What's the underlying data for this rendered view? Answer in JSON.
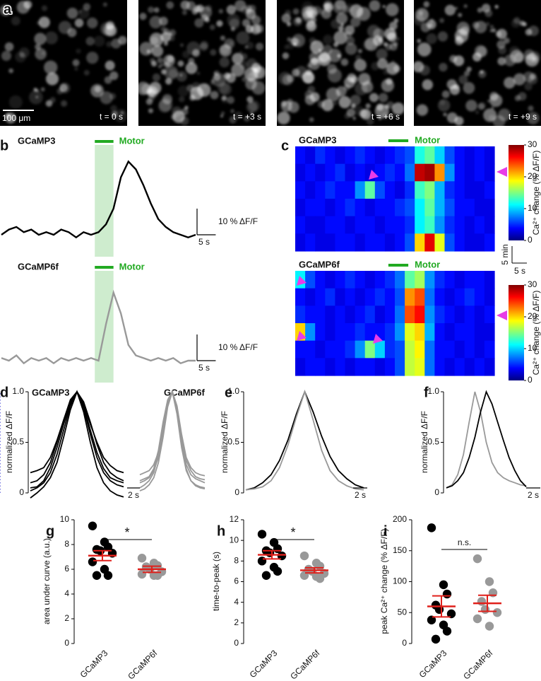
{
  "images": {
    "label": "a",
    "frames": [
      "t = 0 s",
      "t = +3 s",
      "t = +6 s",
      "t = +9 s"
    ],
    "scalebar": "100 μm"
  },
  "chart_data": [
    {
      "type": "trace",
      "panel": "b",
      "stimulus": "Motor",
      "stimulus_color": "#22aa22",
      "x": [
        0,
        2,
        4,
        6,
        8,
        10,
        12,
        14,
        16,
        18,
        20,
        22,
        24,
        26,
        28,
        30,
        32,
        34,
        36,
        38,
        40,
        42,
        44,
        46,
        48,
        50,
        52
      ],
      "window": [
        25,
        30
      ],
      "scalebar_y": {
        "value": 10,
        "label": "10 % ΔF/F"
      },
      "scalebar_x": {
        "value": 5,
        "label": "5 s"
      },
      "traces": [
        {
          "name": "GCaMP3",
          "color": "#000000",
          "values": [
            0,
            2,
            3,
            1,
            2,
            0,
            1,
            0,
            2,
            1,
            -1,
            1,
            0,
            1,
            4,
            10,
            22,
            28,
            25,
            19,
            12,
            6,
            3,
            1,
            0,
            -1,
            0
          ]
        },
        {
          "name": "GCaMP6f",
          "color": "#999999",
          "values": [
            1,
            0,
            2,
            -1,
            1,
            0,
            1,
            -1,
            1,
            0,
            1,
            0,
            1,
            0,
            14,
            26,
            18,
            6,
            2,
            1,
            0,
            1,
            0,
            1,
            -1,
            0,
            0
          ]
        }
      ]
    },
    {
      "type": "heatmap",
      "panel": "c",
      "stimulus": "Motor",
      "stimulus_color": "#22aa22",
      "window": [
        9,
        11
      ],
      "zlim": [
        0,
        30
      ],
      "zticks": [
        0,
        10,
        20,
        30
      ],
      "colorbar_label": "Ca²⁺ change (% ΔF/F)",
      "scalebar_y": "5 min",
      "scalebar_x": "5 s",
      "maps": [
        {
          "name": "GCaMP3",
          "rows": [
            [
              4,
              3,
              5,
              4,
              3,
              4,
              5,
              4,
              3,
              4,
              5,
              6,
              12,
              14,
              10,
              6,
              4,
              3,
              4,
              3
            ],
            [
              3,
              4,
              3,
              4,
              5,
              3,
              4,
              3,
              4,
              5,
              4,
              7,
              28,
              29,
              22,
              8,
              4,
              3,
              4,
              3
            ],
            [
              4,
              3,
              4,
              5,
              4,
              4,
              8,
              14,
              6,
              4,
              3,
              5,
              13,
              15,
              9,
              5,
              4,
              3,
              3,
              4
            ],
            [
              3,
              4,
              4,
              3,
              4,
              5,
              4,
              3,
              4,
              4,
              5,
              6,
              11,
              14,
              9,
              6,
              4,
              4,
              3,
              3
            ],
            [
              4,
              3,
              3,
              4,
              4,
              3,
              4,
              4,
              3,
              4,
              4,
              5,
              11,
              13,
              8,
              5,
              4,
              3,
              4,
              3
            ],
            [
              3,
              4,
              3,
              3,
              4,
              4,
              3,
              4,
              4,
              3,
              4,
              6,
              20,
              27,
              18,
              6,
              4,
              3,
              3,
              4
            ]
          ]
        },
        {
          "name": "GCaMP6f",
          "rows": [
            [
              11,
              6,
              4,
              3,
              4,
              5,
              4,
              3,
              4,
              5,
              7,
              14,
              16,
              8,
              5,
              4,
              3,
              4,
              4,
              3
            ],
            [
              4,
              3,
              4,
              5,
              3,
              4,
              3,
              4,
              5,
              4,
              6,
              22,
              24,
              7,
              4,
              3,
              4,
              5,
              4,
              3
            ],
            [
              5,
              4,
              4,
              3,
              4,
              3,
              4,
              5,
              3,
              4,
              7,
              24,
              26,
              8,
              5,
              4,
              3,
              4,
              3,
              4
            ],
            [
              20,
              8,
              4,
              3,
              4,
              4,
              5,
              4,
              4,
              5,
              8,
              18,
              20,
              9,
              4,
              3,
              4,
              4,
              3,
              3
            ],
            [
              4,
              4,
              3,
              4,
              4,
              5,
              8,
              15,
              10,
              5,
              6,
              17,
              19,
              7,
              4,
              4,
              3,
              4,
              3,
              4
            ],
            [
              3,
              4,
              4,
              3,
              4,
              3,
              4,
              4,
              3,
              4,
              6,
              17,
              18,
              7,
              4,
              3,
              4,
              3,
              4,
              3
            ]
          ]
        }
      ]
    },
    {
      "type": "line",
      "panel": "d",
      "ylabel": "normalized ΔF/F",
      "ylim": [
        0,
        1
      ],
      "yticks": [
        0,
        0.5,
        {
          "value": 1,
          "label": "1.0"
        }
      ],
      "scalebar_x": "2 s",
      "groups": [
        {
          "name": "GCaMP3",
          "color": "#000000",
          "series": [
            [
              0.02,
              0.05,
              0.1,
              0.2,
              0.38,
              0.62,
              0.86,
              1,
              0.84,
              0.58,
              0.35,
              0.2,
              0.12,
              0.08,
              0.06
            ],
            [
              0.1,
              0.12,
              0.18,
              0.3,
              0.5,
              0.72,
              0.9,
              1,
              0.9,
              0.7,
              0.48,
              0.3,
              0.2,
              0.15,
              0.12
            ],
            [
              -0.05,
              0,
              0.06,
              0.15,
              0.3,
              0.55,
              0.82,
              1,
              0.8,
              0.5,
              0.25,
              0.1,
              0.02,
              -0.02,
              -0.04
            ],
            [
              0.2,
              0.22,
              0.25,
              0.35,
              0.52,
              0.72,
              0.92,
              1,
              0.88,
              0.68,
              0.5,
              0.35,
              0.27,
              0.22,
              0.2
            ],
            [
              0.05,
              0.06,
              0.12,
              0.25,
              0.45,
              0.68,
              0.88,
              1,
              0.86,
              0.62,
              0.4,
              0.24,
              0.15,
              0.12,
              0.1
            ]
          ]
        },
        {
          "name": "GCaMP6f",
          "color": "#999999",
          "series": [
            [
              0.1,
              0.12,
              0.15,
              0.22,
              0.35,
              0.6,
              0.88,
              1,
              0.82,
              0.5,
              0.28,
              0.18,
              0.14,
              0.12,
              0.1
            ],
            [
              0.02,
              0.04,
              0.08,
              0.15,
              0.3,
              0.55,
              0.85,
              1,
              0.8,
              0.48,
              0.24,
              0.12,
              0.07,
              0.05,
              0.04
            ],
            [
              0.18,
              0.2,
              0.22,
              0.28,
              0.4,
              0.62,
              0.9,
              1,
              0.86,
              0.58,
              0.35,
              0.25,
              0.2,
              0.18,
              0.17
            ],
            [
              0.05,
              0.08,
              0.12,
              0.2,
              0.38,
              0.65,
              0.9,
              1,
              0.78,
              0.45,
              0.22,
              0.12,
              0.08,
              0.06,
              0.05
            ],
            [
              0.12,
              0.14,
              0.16,
              0.24,
              0.42,
              0.7,
              0.92,
              1,
              0.85,
              0.55,
              0.32,
              0.22,
              0.16,
              0.14,
              0.13
            ]
          ]
        }
      ]
    },
    {
      "type": "line",
      "panel": "e",
      "ylabel": "normalized ΔF/F",
      "ylim": [
        0,
        1
      ],
      "yticks": [
        0,
        0.5,
        {
          "value": 1,
          "label": "1.0"
        }
      ],
      "scalebar_x": "2 s",
      "series": [
        {
          "color": "#000000",
          "values": [
            0.03,
            0.05,
            0.1,
            0.18,
            0.32,
            0.52,
            0.78,
            1,
            0.8,
            0.56,
            0.36,
            0.22,
            0.14,
            0.08,
            0.05
          ]
        },
        {
          "color": "#999999",
          "values": [
            0.03,
            0.04,
            0.06,
            0.12,
            0.25,
            0.47,
            0.75,
            1,
            0.72,
            0.42,
            0.22,
            0.12,
            0.07,
            0.04,
            0.03
          ]
        }
      ]
    },
    {
      "type": "line",
      "panel": "f",
      "ylabel": "normalized ΔF/F",
      "ylim": [
        0,
        1
      ],
      "yticks": [
        0,
        0.5,
        {
          "value": 1,
          "label": "1.0"
        }
      ],
      "scalebar_x": "2 s",
      "peak_lines": true,
      "series": [
        {
          "color": "#999999",
          "values": [
            0.05,
            0.08,
            0.18,
            0.38,
            0.7,
            1,
            0.8,
            0.5,
            0.3,
            0.2,
            0.15,
            0.12,
            0.1,
            0.08,
            0.07
          ]
        },
        {
          "color": "#000000",
          "values": [
            0.05,
            0.07,
            0.12,
            0.2,
            0.35,
            0.55,
            0.8,
            1,
            0.88,
            0.7,
            0.52,
            0.35,
            0.22,
            0.12,
            0.06
          ]
        }
      ]
    },
    {
      "type": "dotplot",
      "panel": "g",
      "ylabel": "area under curve (a.u.)",
      "ylim": [
        0,
        10
      ],
      "yticks": [
        0,
        2,
        4,
        6,
        8,
        10
      ],
      "categories": [
        "GCaMP3",
        "GCaMP6f"
      ],
      "significance": "*",
      "mean_color": "#e0201b",
      "groups": [
        {
          "color": "#000000",
          "values": [
            9.5,
            8.2,
            7.8,
            7.6,
            7.5,
            7.3,
            6.6,
            6.0,
            5.5,
            5.5
          ],
          "mean": 7.1,
          "sem": 0.4
        },
        {
          "color": "#999999",
          "values": [
            6.9,
            6.5,
            6.3,
            6.2,
            6.0,
            5.8,
            5.6,
            5.5,
            5.5
          ],
          "mean": 6.0,
          "sem": 0.25
        }
      ]
    },
    {
      "type": "dotplot",
      "panel": "h",
      "ylabel": "time-to-peak (s)",
      "ylim": [
        0,
        12
      ],
      "yticks": [
        0,
        2,
        4,
        6,
        8,
        10,
        12
      ],
      "categories": [
        "GCaMP3",
        "GCaMP6f"
      ],
      "significance": "*",
      "mean_color": "#e0201b",
      "groups": [
        {
          "color": "#000000",
          "values": [
            10.6,
            9.8,
            9.2,
            9.0,
            8.8,
            8.5,
            8.0,
            7.4,
            7.0,
            6.6
          ],
          "mean": 8.6,
          "sem": 0.4
        },
        {
          "color": "#999999",
          "values": [
            8.5,
            7.8,
            7.5,
            7.2,
            7.0,
            6.8,
            6.6,
            6.5,
            6.3
          ],
          "mean": 7.1,
          "sem": 0.25
        }
      ]
    },
    {
      "type": "dotplot",
      "panel": "i",
      "ylabel": "peak Ca²⁺ change (% ΔF/F)",
      "ylim": [
        0,
        200
      ],
      "yticks": [
        0,
        50,
        100,
        150,
        200
      ],
      "categories": [
        "GCaMP3",
        "GCaMP6f"
      ],
      "significance": "n.s.",
      "mean_color": "#e0201b",
      "groups": [
        {
          "color": "#000000",
          "values": [
            187,
            95,
            80,
            62,
            55,
            48,
            38,
            30,
            20,
            7
          ],
          "mean": 60,
          "sem": 17
        },
        {
          "color": "#999999",
          "values": [
            137,
            100,
            82,
            68,
            55,
            50,
            40,
            28
          ],
          "mean": 65,
          "sem": 13
        }
      ]
    }
  ]
}
